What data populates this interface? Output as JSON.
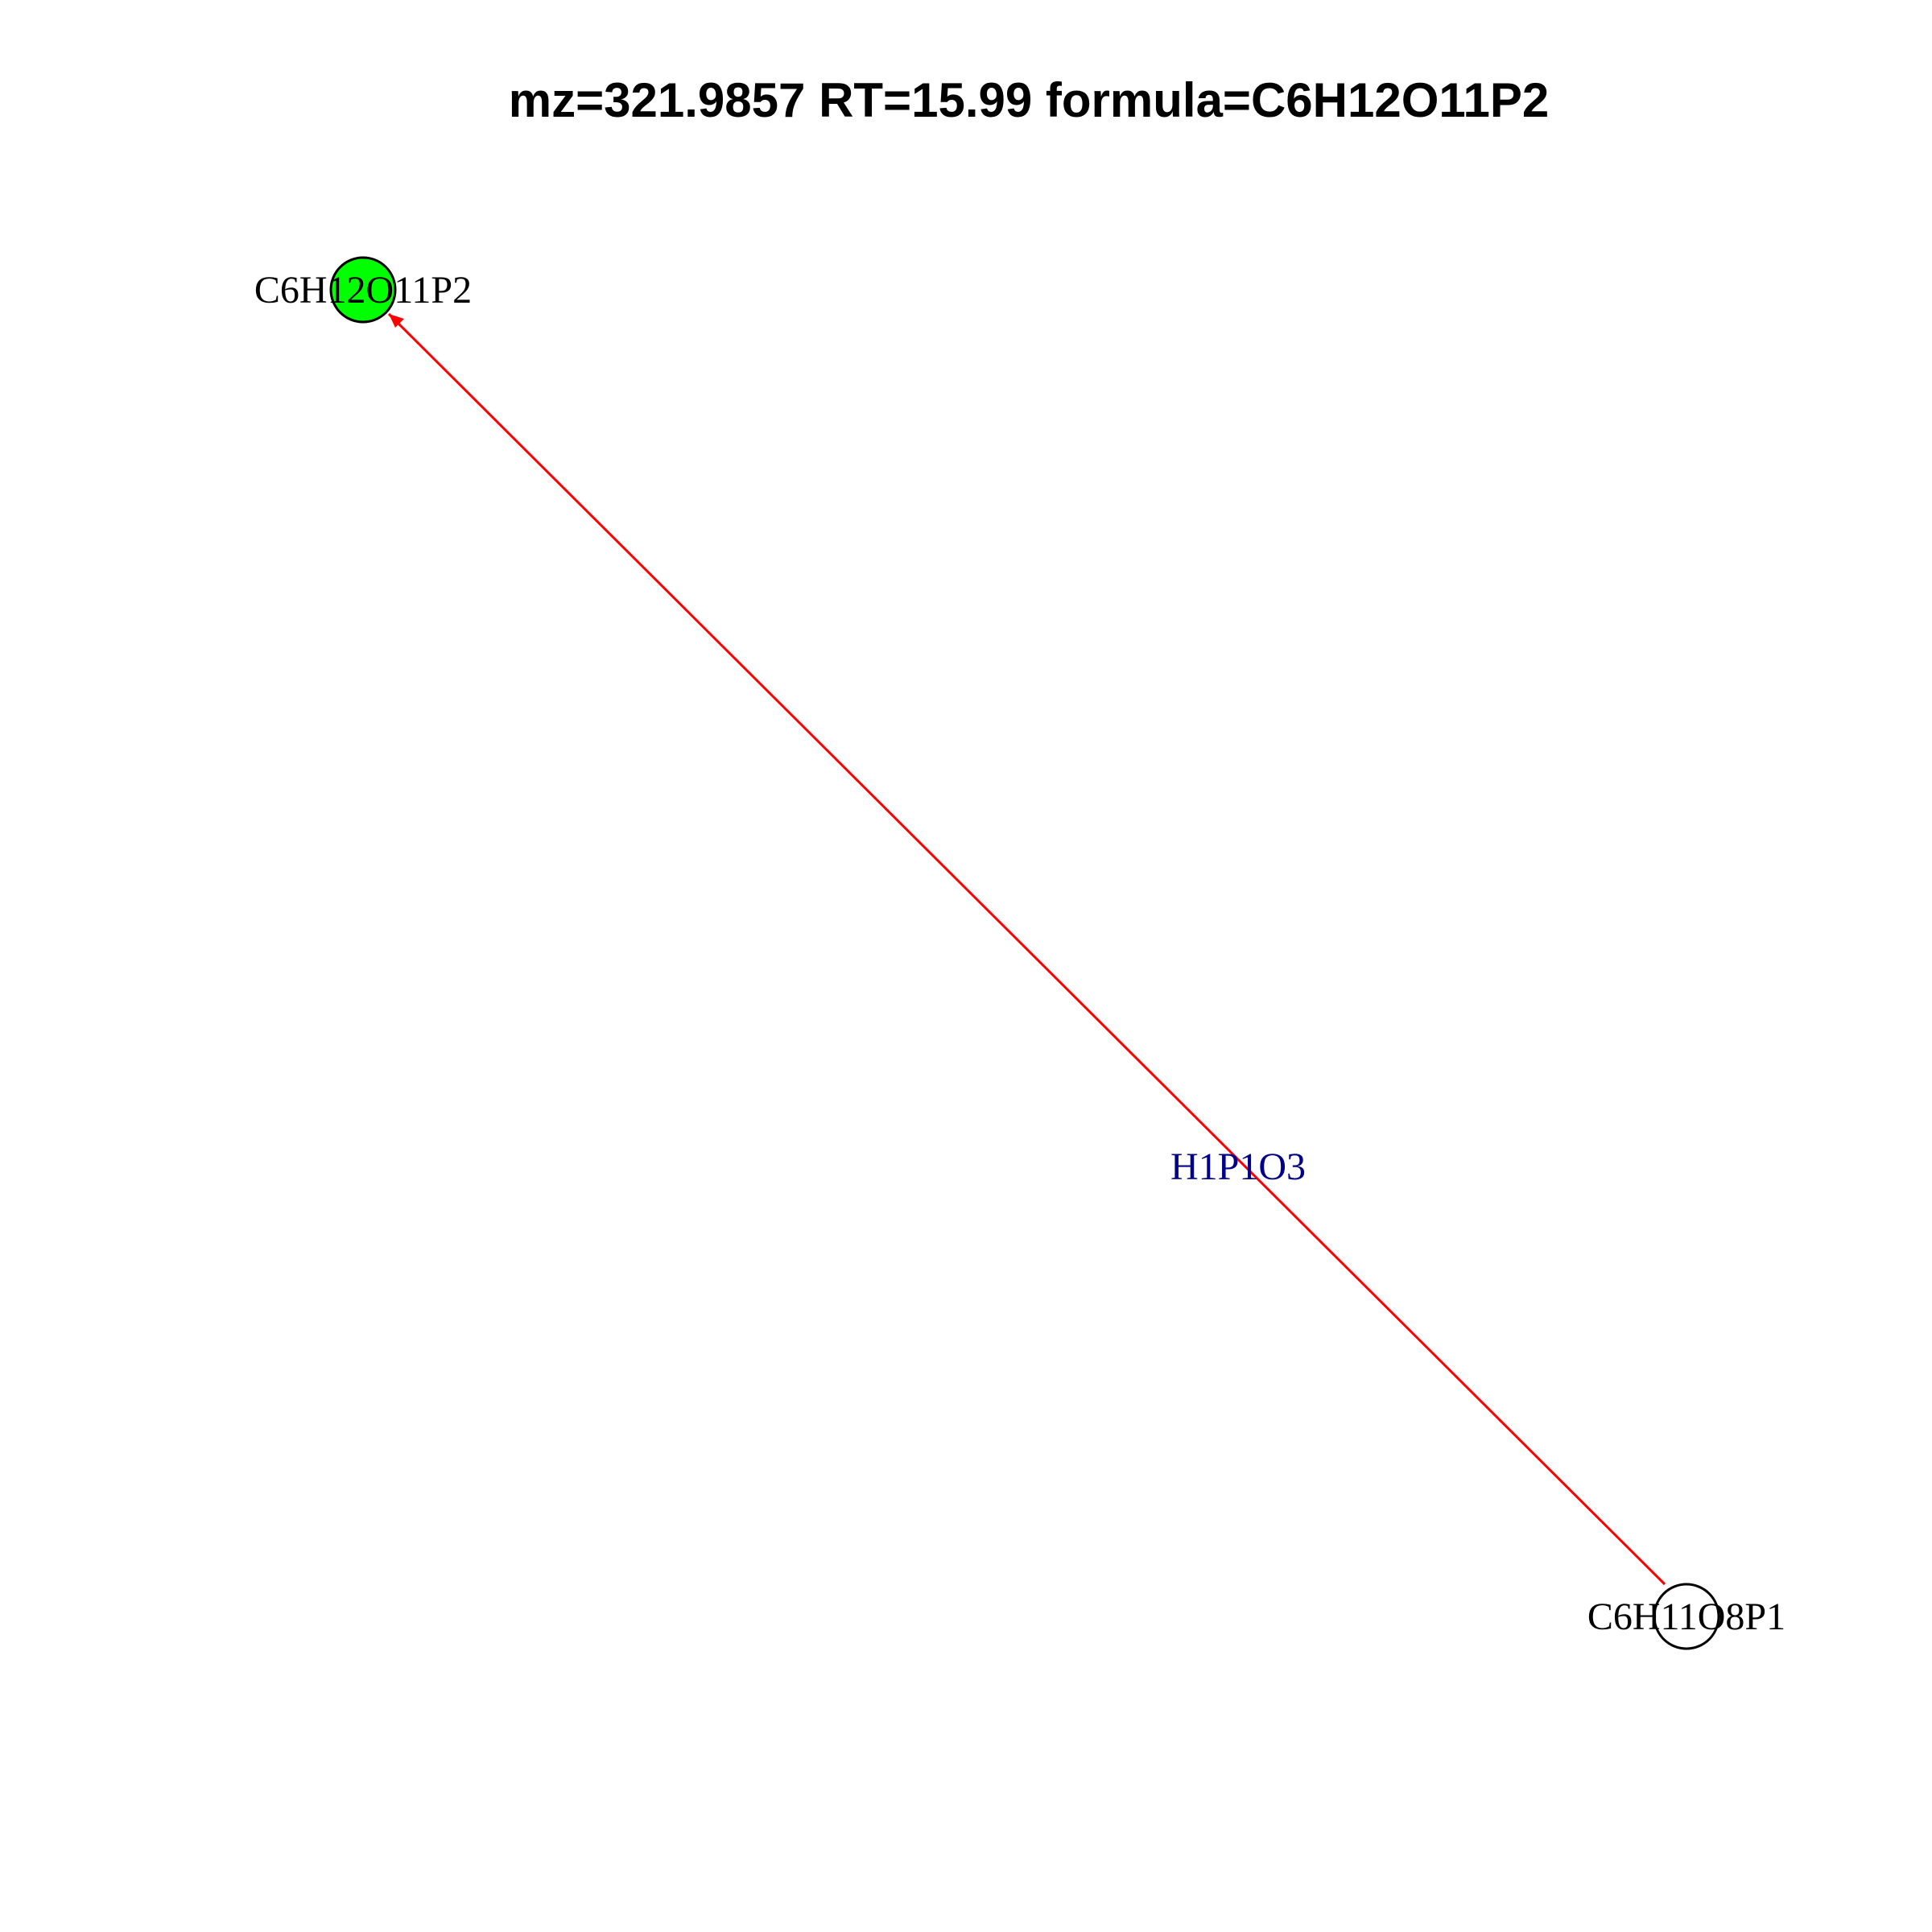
{
  "title": "mz=321.9857 RT=15.99 formula=C6H12O11P2",
  "nodes": [
    {
      "id": "target",
      "label": "C6H12O11P2",
      "fill": "#00ff00",
      "stroke": "#000000"
    },
    {
      "id": "source",
      "label": "C6H11O8P1",
      "fill": "#ffffff",
      "stroke": "#000000"
    }
  ],
  "edge": {
    "from": "source",
    "to": "target",
    "label": "H1P1O3",
    "color": "#ff0000",
    "label_color": "#00008b"
  }
}
